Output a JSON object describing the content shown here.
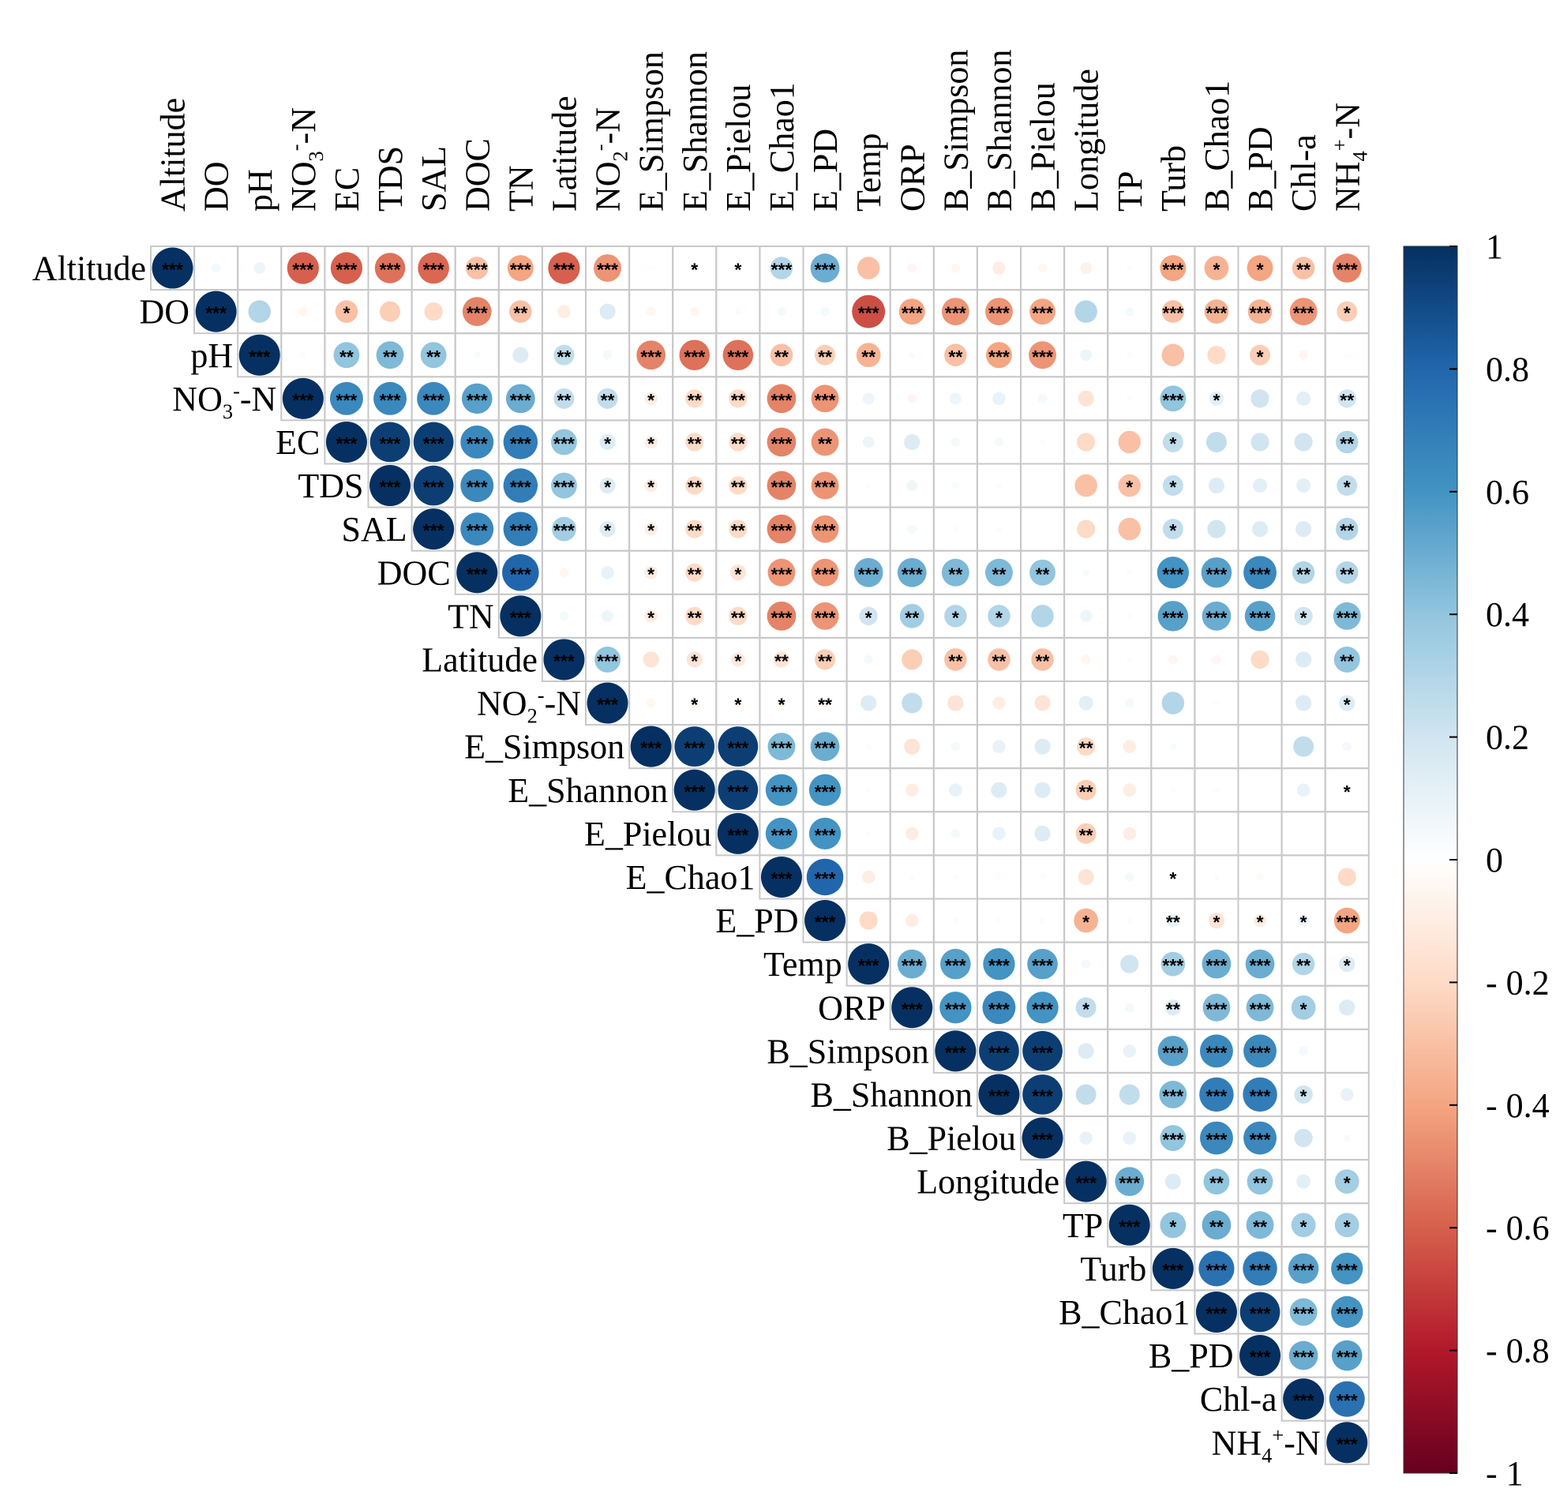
{
  "chart_data": {
    "type": "heatmap",
    "subtype": "upper-triangular correlation matrix (circle size and color encode r)",
    "variables": [
      {
        "name": "Altitude"
      },
      {
        "name": "DO"
      },
      {
        "name": "pH"
      },
      {
        "name": "NO3--N",
        "base": "NO",
        "sub": "3",
        "sup": "-",
        "tail": "-N"
      },
      {
        "name": "EC"
      },
      {
        "name": "TDS"
      },
      {
        "name": "SAL"
      },
      {
        "name": "DOC"
      },
      {
        "name": "TN"
      },
      {
        "name": "Latitude"
      },
      {
        "name": "NO2--N",
        "base": "NO",
        "sub": "2",
        "sup": "-",
        "tail": "-N"
      },
      {
        "name": "E_Simpson"
      },
      {
        "name": "E_Shannon"
      },
      {
        "name": "E_Pielou"
      },
      {
        "name": "E_Chao1"
      },
      {
        "name": "E_PD"
      },
      {
        "name": "Temp"
      },
      {
        "name": "ORP"
      },
      {
        "name": "B_Simpson"
      },
      {
        "name": "B_Shannon"
      },
      {
        "name": "B_Pielou"
      },
      {
        "name": "Longitude"
      },
      {
        "name": "TP"
      },
      {
        "name": "Turb"
      },
      {
        "name": "B_Chao1"
      },
      {
        "name": "B_PD"
      },
      {
        "name": "Chl-a"
      },
      {
        "name": "NH4+-N",
        "base": "NH",
        "sub": "4",
        "sup": "+",
        "tail": "-N"
      }
    ],
    "matrix_upper": [
      [
        1,
        0.05,
        0.08,
        -0.6,
        -0.6,
        -0.55,
        -0.58,
        -0.3,
        -0.4,
        -0.6,
        -0.45,
        -0.02,
        -0.05,
        -0.04,
        0.3,
        0.5,
        -0.3,
        -0.05,
        -0.05,
        -0.1,
        -0.05,
        -0.08,
        -0.02,
        -0.4,
        -0.35,
        -0.4,
        -0.3,
        -0.5
      ],
      [
        1,
        0.3,
        -0.05,
        -0.3,
        -0.25,
        -0.2,
        -0.5,
        -0.3,
        -0.1,
        0.15,
        -0.05,
        -0.05,
        -0.03,
        0.05,
        0.05,
        -0.65,
        -0.4,
        -0.45,
        -0.45,
        -0.4,
        0.3,
        0.05,
        -0.3,
        -0.35,
        -0.35,
        -0.45,
        -0.25
      ],
      [
        1,
        0.02,
        0.4,
        0.45,
        0.4,
        0.03,
        0.15,
        0.25,
        0.05,
        -0.5,
        -0.55,
        -0.55,
        -0.3,
        -0.25,
        -0.35,
        -0.03,
        -0.3,
        -0.4,
        -0.45,
        0.08,
        0.02,
        -0.3,
        -0.2,
        -0.25,
        -0.05,
        -0.02
      ],
      [
        1,
        0.65,
        0.65,
        0.65,
        0.55,
        0.5,
        0.25,
        0.25,
        -0.1,
        -0.2,
        -0.2,
        -0.5,
        -0.45,
        0.08,
        -0.05,
        0.08,
        0.1,
        0.05,
        -0.15,
        0.02,
        0.4,
        0.12,
        0.2,
        0.12,
        0.2
      ],
      [
        1,
        0.95,
        0.95,
        0.65,
        0.7,
        0.4,
        0.15,
        -0.1,
        -0.2,
        -0.2,
        -0.5,
        -0.45,
        0.08,
        0.15,
        0.05,
        0.05,
        0.02,
        -0.2,
        -0.3,
        0.25,
        0.25,
        0.2,
        0.2,
        0.3
      ],
      [
        1,
        0.95,
        0.65,
        0.7,
        0.4,
        0.15,
        -0.1,
        -0.2,
        -0.2,
        -0.5,
        -0.45,
        0.02,
        0.07,
        0.03,
        0.02,
        0.01,
        -0.3,
        -0.3,
        0.25,
        0.15,
        0.12,
        0.12,
        0.25
      ],
      [
        1,
        0.65,
        0.7,
        0.35,
        0.15,
        -0.1,
        -0.2,
        -0.2,
        -0.5,
        -0.45,
        0.01,
        0.05,
        0.02,
        0.02,
        0.01,
        -0.2,
        -0.3,
        0.25,
        0.2,
        0.15,
        0.15,
        0.3
      ],
      [
        1,
        0.8,
        -0.05,
        0.1,
        -0.1,
        -0.2,
        -0.15,
        -0.45,
        -0.45,
        0.5,
        0.5,
        0.45,
        0.45,
        0.4,
        0.03,
        0.02,
        0.6,
        0.55,
        0.65,
        0.3,
        0.3
      ],
      [
        1,
        0.05,
        0.08,
        -0.1,
        -0.2,
        -0.2,
        -0.5,
        -0.45,
        0.2,
        0.35,
        0.3,
        0.3,
        0.3,
        0.08,
        0.02,
        0.55,
        0.5,
        0.55,
        0.2,
        0.45
      ],
      [
        1,
        0.4,
        -0.15,
        -0.15,
        -0.12,
        -0.15,
        -0.25,
        0.05,
        -0.25,
        -0.3,
        -0.3,
        -0.3,
        -0.05,
        0.02,
        -0.05,
        -0.05,
        -0.2,
        0.15,
        0.4
      ],
      [
        1,
        -0.05,
        -0.05,
        -0.05,
        -0.05,
        -0.05,
        0.15,
        0.25,
        -0.15,
        -0.1,
        -0.15,
        0.12,
        0.05,
        0.3,
        0.02,
        0.01,
        0.15,
        0.15
      ],
      [
        1,
        0.95,
        0.95,
        0.45,
        0.5,
        -0.02,
        -0.15,
        0.05,
        0.1,
        0.15,
        -0.2,
        -0.1,
        0.03,
        0,
        0,
        0.25,
        0.05
      ],
      [
        1,
        0.95,
        0.6,
        0.6,
        -0.02,
        -0.1,
        0.1,
        0.15,
        0.15,
        -0.25,
        -0.1,
        -0.02,
        -0.02,
        0,
        0.1,
        0.02
      ],
      [
        1,
        0.6,
        0.6,
        -0.02,
        -0.1,
        0.05,
        0.1,
        0.15,
        -0.25,
        -0.1,
        0,
        0,
        0,
        0,
        0
      ],
      [
        1,
        0.8,
        -0.1,
        -0.02,
        -0.02,
        -0.02,
        -0.02,
        -0.15,
        0.05,
        0.02,
        -0.02,
        -0.03,
        0,
        -0.2
      ],
      [
        1,
        -0.2,
        -0.1,
        0.02,
        0.02,
        0.02,
        -0.35,
        -0.02,
        0.1,
        -0.15,
        -0.1,
        0.08,
        -0.4
      ],
      [
        1,
        0.5,
        0.55,
        0.6,
        0.55,
        0.05,
        0.2,
        0.35,
        0.5,
        0.5,
        0.3,
        0.15
      ],
      [
        1,
        0.6,
        0.65,
        0.6,
        0.25,
        0.05,
        0.15,
        0.45,
        0.45,
        0.35,
        0.15
      ],
      [
        1,
        0.95,
        0.95,
        0.15,
        0.1,
        0.55,
        0.65,
        0.65,
        0.05,
        0
      ],
      [
        1,
        0.95,
        0.25,
        0.25,
        0.45,
        0.7,
        0.7,
        0.2,
        0.1
      ],
      [
        1,
        0.1,
        0.1,
        0.4,
        0.65,
        0.65,
        0.2,
        0.03
      ],
      [
        1,
        0.5,
        0.15,
        0.4,
        0.4,
        0.12,
        0.35
      ],
      [
        1,
        0.4,
        0.5,
        0.45,
        0.35,
        0.35
      ],
      [
        1,
        0.75,
        0.7,
        0.55,
        0.6
      ],
      [
        1,
        0.95,
        0.45,
        0.6
      ],
      [
        1,
        0.5,
        0.55
      ],
      [
        1,
        0.75
      ],
      [
        1
      ]
    ],
    "significance_upper": [
      [
        "***",
        "",
        "",
        "***",
        "***",
        "***",
        "***",
        "***",
        "***",
        "***",
        "***",
        "",
        "*",
        "*",
        "***",
        "***",
        "",
        "",
        "",
        "",
        "",
        "",
        "",
        "***",
        "*",
        "*",
        "**",
        "***"
      ],
      [
        "***",
        "",
        "",
        "*",
        "",
        "",
        "***",
        "**",
        "",
        "",
        "",
        "",
        "",
        "",
        "",
        "***",
        "***",
        "***",
        "***",
        "***",
        "",
        "",
        "***",
        "***",
        "***",
        "***",
        "*"
      ],
      [
        "***",
        "",
        "**",
        "**",
        "**",
        "",
        "",
        "**",
        "",
        "***",
        "***",
        "***",
        "**",
        "**",
        "**",
        "",
        "**",
        "***",
        "***",
        "",
        "",
        "",
        "",
        "*",
        "",
        ""
      ],
      [
        "***",
        "***",
        "***",
        "***",
        "***",
        "***",
        "**",
        "**",
        "*",
        "**",
        "**",
        "***",
        "***",
        "",
        "",
        "",
        "",
        "",
        "",
        "",
        "***",
        "*",
        "",
        "",
        "**"
      ],
      [
        "***",
        "***",
        "***",
        "***",
        "***",
        "***",
        "*",
        "*",
        "**",
        "**",
        "***",
        "**",
        "",
        "",
        "",
        "",
        "",
        "",
        "",
        "*",
        "",
        "",
        "",
        "**"
      ],
      [
        "***",
        "***",
        "***",
        "***",
        "***",
        "*",
        "*",
        "**",
        "**",
        "***",
        "***",
        "",
        "",
        "",
        "",
        "",
        "",
        "*",
        "*",
        "",
        "",
        "",
        "*"
      ],
      [
        "***",
        "***",
        "***",
        "***",
        "*",
        "*",
        "**",
        "**",
        "***",
        "***",
        "",
        "",
        "",
        "",
        "",
        "",
        "",
        "*",
        "",
        "",
        "",
        "**"
      ],
      [
        "***",
        "***",
        "",
        "",
        "*",
        "**",
        "*",
        "***",
        "***",
        "***",
        "***",
        "**",
        "**",
        "**",
        "",
        "",
        "***",
        "***",
        "***",
        "**",
        "**"
      ],
      [
        "***",
        "",
        "",
        "*",
        "**",
        "**",
        "***",
        "***",
        "*",
        "**",
        "*",
        "*",
        "",
        "",
        "",
        "***",
        "***",
        "***",
        "*",
        "***"
      ],
      [
        "***",
        "***",
        "",
        "*",
        "*",
        "**",
        "**",
        "",
        "",
        "**",
        "**",
        "**",
        "",
        "",
        "",
        "",
        "",
        "",
        "**"
      ],
      [
        "***",
        "",
        "*",
        "*",
        "*",
        "**",
        "",
        "",
        "",
        "",
        "",
        "",
        "",
        "",
        "",
        "",
        "",
        "*"
      ],
      [
        "***",
        "***",
        "***",
        "***",
        "***",
        "",
        "",
        "",
        "",
        "",
        "**",
        "",
        "",
        "",
        "",
        "",
        ""
      ],
      [
        "***",
        "***",
        "***",
        "***",
        "",
        "",
        "",
        "",
        "",
        "**",
        "",
        "",
        "",
        "",
        "",
        "*"
      ],
      [
        "***",
        "***",
        "***",
        "",
        "",
        "",
        "",
        "",
        "**",
        "",
        "",
        "",
        "",
        "",
        ""
      ],
      [
        "***",
        "***",
        "",
        "",
        "",
        "",
        "",
        "",
        "",
        "*",
        "",
        "",
        "",
        ""
      ],
      [
        "***",
        "",
        "",
        "",
        "",
        "",
        "*",
        "",
        "**",
        "*",
        "*",
        "*",
        "***"
      ],
      [
        "***",
        "***",
        "***",
        "***",
        "***",
        "",
        "",
        "***",
        "***",
        "***",
        "**",
        "*"
      ],
      [
        "***",
        "***",
        "***",
        "***",
        "*",
        "",
        "**",
        "***",
        "***",
        "*",
        ""
      ],
      [
        "***",
        "***",
        "***",
        "",
        "",
        "***",
        "***",
        "***",
        "",
        ""
      ],
      [
        "***",
        "***",
        "",
        "",
        "***",
        "***",
        "***",
        "*",
        ""
      ],
      [
        "***",
        "",
        "",
        "***",
        "***",
        "***",
        "",
        ""
      ],
      [
        "***",
        "***",
        "",
        "**",
        "**",
        "",
        "*"
      ],
      [
        "***",
        "*",
        "**",
        "**",
        "*",
        "*"
      ],
      [
        "***",
        "***",
        "***",
        "***",
        "***"
      ],
      [
        "***",
        "***",
        "***",
        "***"
      ],
      [
        "***",
        "***",
        "***"
      ],
      [
        "***",
        "***"
      ],
      [
        "***"
      ]
    ],
    "colorbar": {
      "min": -1,
      "max": 1,
      "tick_labels": [
        "1",
        "0.8",
        "0.6",
        "0.4",
        "0.2",
        "0",
        "- 0.2",
        "- 0.4",
        "- 0.6",
        "- 0.8",
        "- 1"
      ],
      "tick_values": [
        1,
        0.8,
        0.6,
        0.4,
        0.2,
        0,
        -0.2,
        -0.4,
        -0.6,
        -0.8,
        -1
      ],
      "colors": [
        "#67001F",
        "#B2182B",
        "#D6604D",
        "#F4A582",
        "#FDDBC7",
        "#FFFFFF",
        "#D1E5F0",
        "#92C5DE",
        "#4393C3",
        "#2166AC",
        "#053061"
      ]
    }
  }
}
